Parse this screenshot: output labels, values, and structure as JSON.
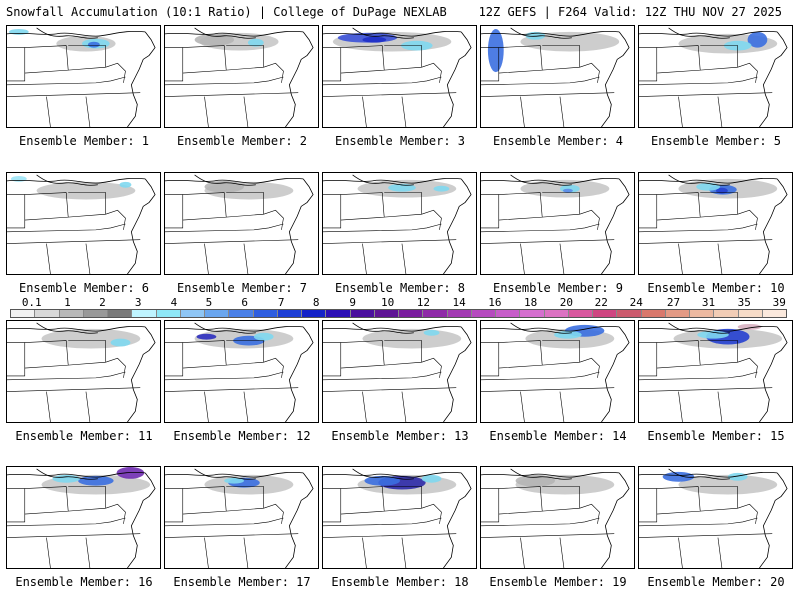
{
  "header": {
    "title": "Snowfall Accumulation (10:1 Ratio) | College of DuPage NEXLAB",
    "run_info": "12Z GEFS | F264 Valid: 12Z THU NOV 27 2025"
  },
  "colorbar": {
    "labels": [
      "0.1",
      "1",
      "2",
      "3",
      "4",
      "5",
      "6",
      "7",
      "8",
      "9",
      "10",
      "12",
      "14",
      "16",
      "18",
      "20",
      "22",
      "24",
      "27",
      "31",
      "35",
      "39"
    ],
    "colors": [
      "#f2f2f2",
      "#d9d9d9",
      "#b8b8b8",
      "#999999",
      "#7a7a7a",
      "#bff4ff",
      "#8fe8f7",
      "#8fc6f5",
      "#6aa6ef",
      "#4a80e8",
      "#2f5ee0",
      "#1e3fd6",
      "#1422c8",
      "#2c0fb5",
      "#4b109e",
      "#5f1495",
      "#7a1d9e",
      "#8f2aa8",
      "#a33ab3",
      "#b64abf",
      "#c75dc9",
      "#d56fcf",
      "#dc72c2",
      "#d8579e",
      "#cf4581",
      "#cc5b6e",
      "#d9786c",
      "#e39a85",
      "#ecb9a1",
      "#f2cdb6",
      "#f7dcc8",
      "#fbe9dd"
    ]
  },
  "members": [
    {
      "label": "Ensemble Member: 1"
    },
    {
      "label": "Ensemble Member: 2"
    },
    {
      "label": "Ensemble Member: 3"
    },
    {
      "label": "Ensemble Member: 4"
    },
    {
      "label": "Ensemble Member: 5"
    },
    {
      "label": "Ensemble Member: 6"
    },
    {
      "label": "Ensemble Member: 7"
    },
    {
      "label": "Ensemble Member: 8"
    },
    {
      "label": "Ensemble Member: 9"
    },
    {
      "label": "Ensemble Member: 10"
    },
    {
      "label": "Ensemble Member: 11"
    },
    {
      "label": "Ensemble Member: 12"
    },
    {
      "label": "Ensemble Member: 13"
    },
    {
      "label": "Ensemble Member: 14"
    },
    {
      "label": "Ensemble Member: 15"
    },
    {
      "label": "Ensemble Member: 16"
    },
    {
      "label": "Ensemble Member: 17"
    },
    {
      "label": "Ensemble Member: 18"
    },
    {
      "label": "Ensemble Member: 19"
    },
    {
      "label": "Ensemble Member: 20"
    }
  ]
}
